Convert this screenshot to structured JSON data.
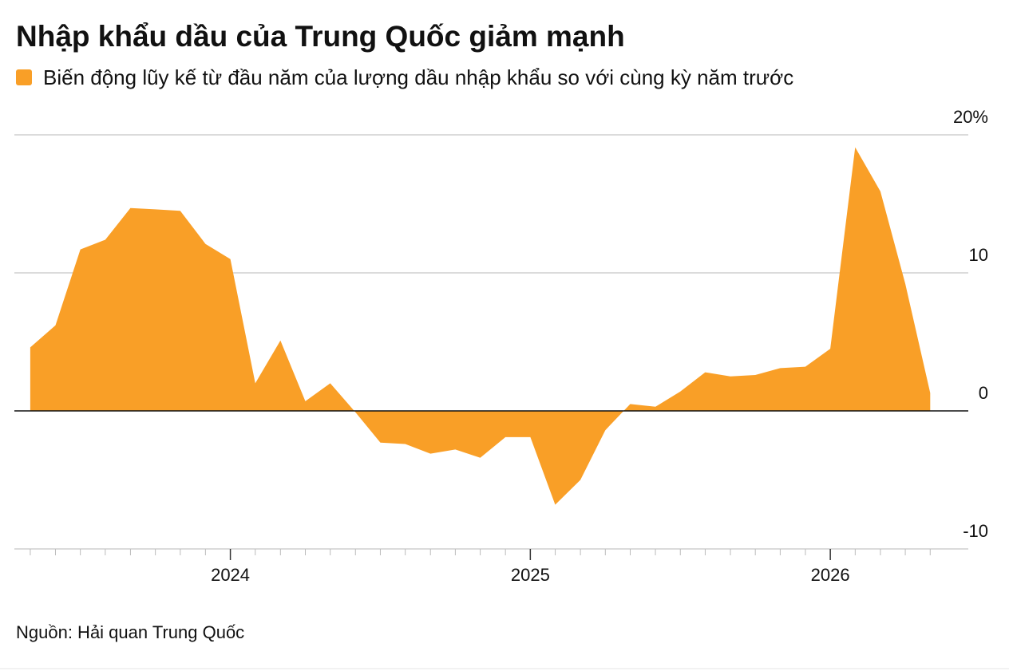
{
  "chart_data": {
    "type": "area",
    "title": "Nhập khẩu dầu của Trung Quốc giảm mạnh",
    "source": "Nguồn: Hải quan Trung Quốc",
    "x": [
      2023.333,
      2023.417,
      2023.5,
      2023.583,
      2023.667,
      2023.75,
      2023.833,
      2023.917,
      2024.0,
      2024.083,
      2024.167,
      2024.25,
      2024.333,
      2024.417,
      2024.5,
      2024.583,
      2024.667,
      2024.75,
      2024.833,
      2024.917,
      2025.0,
      2025.083,
      2025.167,
      2025.25,
      2025.333,
      2025.417,
      2025.5,
      2025.583,
      2025.667,
      2025.75,
      2025.833,
      2025.917,
      2026.0,
      2026.083,
      2026.167,
      2026.25,
      2026.333
    ],
    "series": [
      {
        "name": "Biến động lũy kế từ đầu năm của lượng dầu nhập khẩu so với cùng kỳ năm trước",
        "color": "#f99f27",
        "values": [
          4.6,
          6.2,
          11.7,
          12.4,
          14.7,
          14.6,
          14.5,
          12.1,
          11.0,
          2.0,
          5.1,
          0.7,
          2.0,
          -0.1,
          -2.3,
          -2.4,
          -3.1,
          -2.8,
          -3.4,
          -1.9,
          -1.9,
          -6.8,
          -5.0,
          -1.4,
          0.5,
          0.3,
          1.4,
          2.8,
          2.5,
          2.6,
          3.1,
          3.2,
          4.5,
          19.1,
          15.9,
          9.2,
          1.3
        ]
      }
    ],
    "xlim": [
      2023.28,
      2026.46
    ],
    "xticks": [
      2024,
      2025,
      2026
    ],
    "ylim": [
      -10,
      20
    ],
    "yticks": [
      {
        "value": 20,
        "label": "20%"
      },
      10,
      0,
      -10
    ],
    "grid": true
  }
}
